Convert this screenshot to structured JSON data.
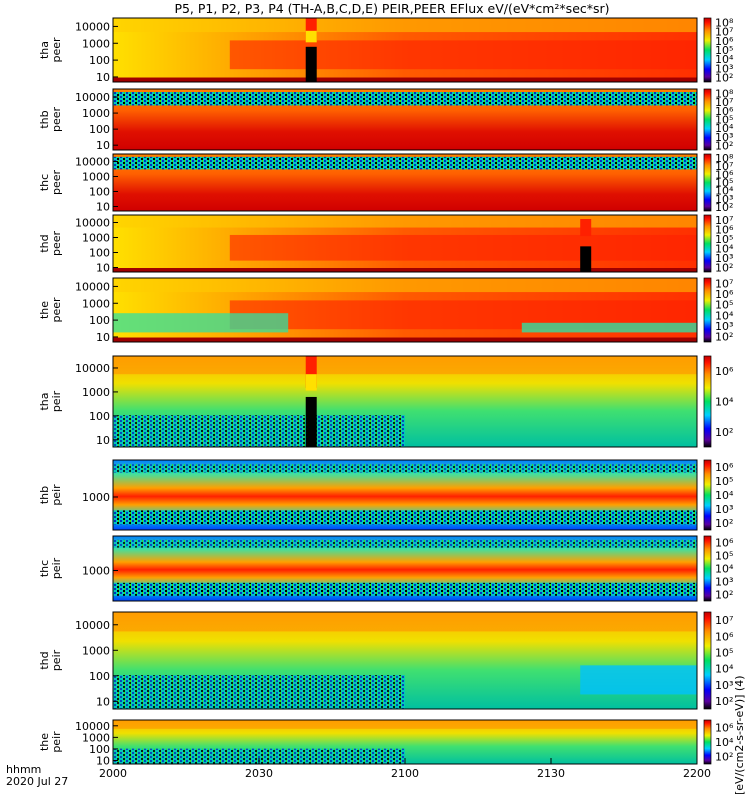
{
  "chart_data": {
    "type": "heatmap",
    "title": "P5, P1, P2, P3, P4 (TH-A,B,C,D,E) PEIR,PEER EFlux eV/(eV*cm²*sec*sr)",
    "x_ticks": [
      "2000",
      "2030",
      "2100",
      "2130",
      "2200"
    ],
    "x_label_line1": "hhmm",
    "x_label_line2": "2020 Jul 27",
    "colorbar_label": "[eV/(cm2-s-sr-eV)] (4)",
    "panels": [
      {
        "probe": "tha",
        "instrument": "peer",
        "y_ticks": [
          "10",
          "100",
          "1000",
          "10000"
        ],
        "colorbar_ticks": [
          "10²",
          "10³",
          "10⁴",
          "10⁵",
          "10⁶",
          "10⁷",
          "10⁸"
        ],
        "style": "peer"
      },
      {
        "probe": "thb",
        "instrument": "peer",
        "y_ticks": [
          "10",
          "100",
          "1000",
          "10000"
        ],
        "colorbar_ticks": [
          "10²",
          "10³",
          "10⁴",
          "10⁵",
          "10⁶",
          "10⁷",
          "10⁸"
        ],
        "style": "peer_flat"
      },
      {
        "probe": "thc",
        "instrument": "peer",
        "y_ticks": [
          "10",
          "100",
          "1000",
          "10000"
        ],
        "colorbar_ticks": [
          "10²",
          "10³",
          "10⁴",
          "10⁵",
          "10⁶",
          "10⁷",
          "10⁸"
        ],
        "style": "peer_flat"
      },
      {
        "probe": "thd",
        "instrument": "peer",
        "y_ticks": [
          "10",
          "100",
          "1000",
          "10000"
        ],
        "colorbar_ticks": [
          "10²",
          "10³",
          "10⁴",
          "10⁵",
          "10⁶",
          "10⁷"
        ],
        "style": "peer"
      },
      {
        "probe": "the",
        "instrument": "peer",
        "y_ticks": [
          "10",
          "100",
          "1000",
          "10000"
        ],
        "colorbar_ticks": [
          "10²",
          "10³",
          "10⁴",
          "10⁵",
          "10⁶",
          "10⁷"
        ],
        "style": "peer_e"
      },
      {
        "probe": "tha",
        "instrument": "peir",
        "y_ticks": [
          "10",
          "100",
          "1000",
          "10000"
        ],
        "colorbar_ticks": [
          "10²",
          "10⁴",
          "10⁶"
        ],
        "style": "peir"
      },
      {
        "probe": "thb",
        "instrument": "peir",
        "y_ticks": [
          "1000"
        ],
        "colorbar_ticks": [
          "10²",
          "10³",
          "10⁴",
          "10⁵",
          "10⁶"
        ],
        "style": "peir_band"
      },
      {
        "probe": "thc",
        "instrument": "peir",
        "y_ticks": [
          "1000"
        ],
        "colorbar_ticks": [
          "10²",
          "10³",
          "10⁴",
          "10⁵",
          "10⁶"
        ],
        "style": "peir_band"
      },
      {
        "probe": "thd",
        "instrument": "peir",
        "y_ticks": [
          "10",
          "100",
          "1000",
          "10000"
        ],
        "colorbar_ticks": [
          "10²",
          "10³",
          "10⁴",
          "10⁵",
          "10⁶",
          "10⁷"
        ],
        "style": "peir_d"
      },
      {
        "probe": "the",
        "instrument": "peir",
        "y_ticks": [
          "10",
          "100",
          "1000",
          "10000"
        ],
        "colorbar_ticks": [
          "10²",
          "10⁴",
          "10⁶"
        ],
        "style": "peir"
      }
    ]
  }
}
